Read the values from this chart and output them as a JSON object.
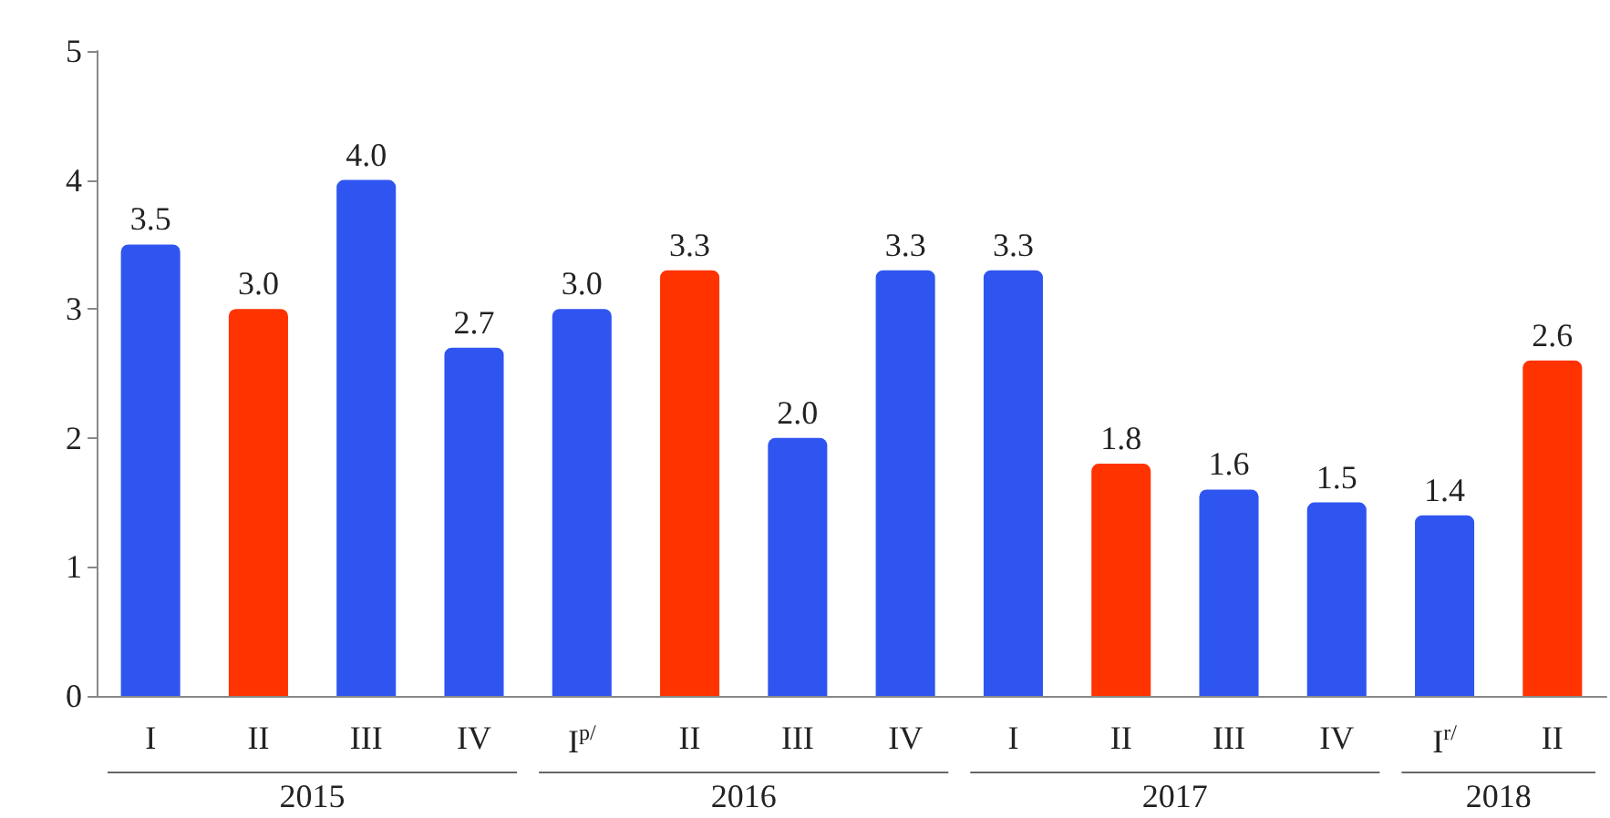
{
  "chart_data": {
    "type": "bar",
    "categories": [
      "I",
      "II",
      "III",
      "IV",
      "I$^{p/}$",
      "II",
      "III",
      "IV",
      "I",
      "II",
      "III",
      "IV",
      "I$^{r/}$",
      "II"
    ],
    "values": [
      3.5,
      3.0,
      4.0,
      2.7,
      3.0,
      3.3,
      2.0,
      3.3,
      3.3,
      1.8,
      1.6,
      1.5,
      1.4,
      2.6
    ],
    "colors": [
      "#2f55f0",
      "#ff3300",
      "#2f55f0",
      "#2f55f0",
      "#2f55f0",
      "#ff3300",
      "#2f55f0",
      "#2f55f0",
      "#2f55f0",
      "#ff3300",
      "#2f55f0",
      "#2f55f0",
      "#2f55f0",
      "#ff3300"
    ],
    "value_labels": [
      "3.5",
      "3.0",
      "4.0",
      "2.7",
      "3.0",
      "3.3",
      "2.0",
      "3.3",
      "3.3",
      "1.8",
      "1.6",
      "1.5",
      "1.4",
      "2.6"
    ],
    "ylim": [
      0,
      5
    ],
    "yticks": [
      0,
      1,
      2,
      3,
      4,
      5
    ],
    "grid": false,
    "annotations": [
      "2015",
      "2016",
      "2017",
      "2018"
    ]
  }
}
